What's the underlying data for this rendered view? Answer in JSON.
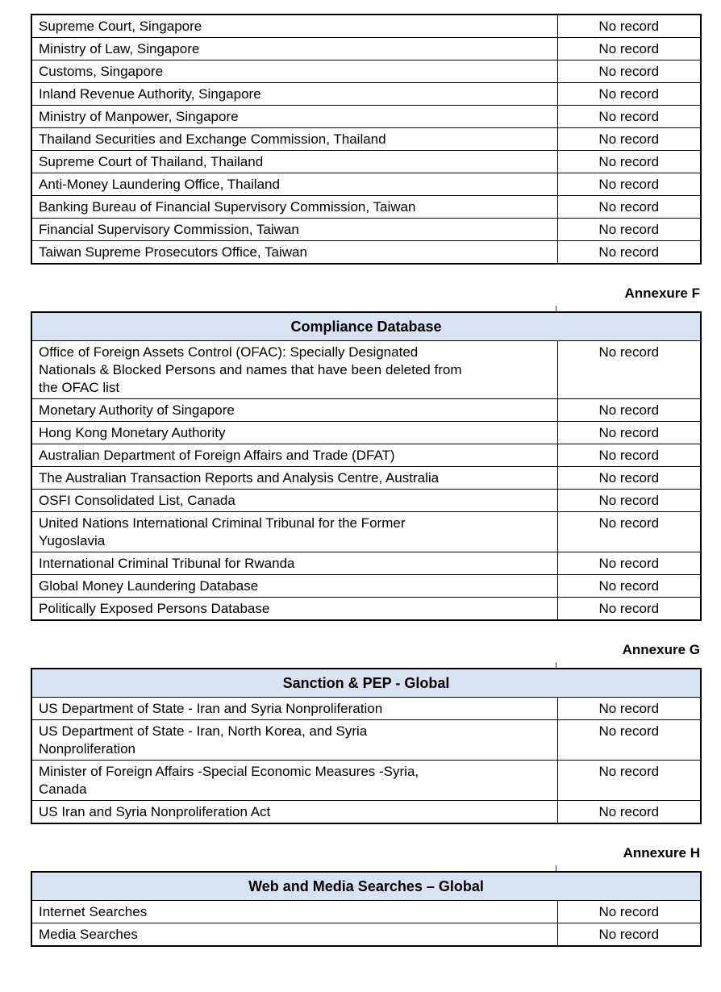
{
  "colors": {
    "background": "#ffffff",
    "header_fill": "#d9e2f3",
    "border": "#000000",
    "text": "#000000"
  },
  "continuation_table": {
    "rows": [
      {
        "source": "Supreme Court, Singapore",
        "result": "No record"
      },
      {
        "source": "Ministry of Law, Singapore",
        "result": "No record"
      },
      {
        "source": "Customs, Singapore",
        "result": "No record"
      },
      {
        "source": "Inland Revenue Authority, Singapore",
        "result": "No record"
      },
      {
        "source": "Ministry of Manpower, Singapore",
        "result": "No record"
      },
      {
        "source": "Thailand Securities and Exchange Commission, Thailand",
        "result": "No record"
      },
      {
        "source": "Supreme Court of Thailand, Thailand",
        "result": "No record"
      },
      {
        "source": "Anti-Money Laundering Office, Thailand",
        "result": "No record"
      },
      {
        "source": "Banking Bureau of Financial Supervisory Commission, Taiwan",
        "result": "No record"
      },
      {
        "source": "Financial Supervisory Commission, Taiwan",
        "result": "No record"
      },
      {
        "source": "Taiwan Supreme Prosecutors Office, Taiwan",
        "result": "No record"
      }
    ]
  },
  "annexure_f": {
    "label": "Annexure F"
  },
  "compliance_table": {
    "title": "Compliance Database",
    "rows": [
      {
        "source": "Office of Foreign Assets Control (OFAC): Specially Designated\nNationals & Blocked Persons and names that have been deleted from\nthe OFAC list",
        "result": "No record"
      },
      {
        "source": "Monetary Authority of Singapore",
        "result": "No record"
      },
      {
        "source": "Hong Kong Monetary Authority",
        "result": "No record"
      },
      {
        "source": "Australian Department of Foreign Affairs and Trade (DFAT)",
        "result": "No record"
      },
      {
        "source": "The Australian Transaction Reports and Analysis Centre, Australia",
        "result": "No record"
      },
      {
        "source": "OSFI Consolidated List, Canada",
        "result": "No record"
      },
      {
        "source": "United Nations International Criminal Tribunal for the Former\nYugoslavia",
        "result": "No record"
      },
      {
        "source": "International Criminal Tribunal for Rwanda",
        "result": "No record"
      },
      {
        "source": "Global Money Laundering Database",
        "result": "No record"
      },
      {
        "source": "Politically Exposed Persons Database",
        "result": "No record"
      }
    ]
  },
  "annexure_g": {
    "label": "Annexure G"
  },
  "sanction_table": {
    "title": "Sanction & PEP - Global",
    "rows": [
      {
        "source": "US Department of State - Iran and Syria Nonproliferation",
        "result": "No record"
      },
      {
        "source": "US Department of State - Iran, North Korea, and Syria\nNonproliferation",
        "result": "No record"
      },
      {
        "source": "Minister of Foreign Affairs -Special Economic Measures -Syria,\nCanada",
        "result": "No record"
      },
      {
        "source": "US Iran and Syria Nonproliferation Act",
        "result": "No record"
      }
    ]
  },
  "annexure_h": {
    "label": "Annexure H"
  },
  "web_media_table": {
    "title": "Web and Media Searches – Global",
    "rows": [
      {
        "source": "Internet Searches",
        "result": "No record"
      },
      {
        "source": "Media Searches",
        "result": "No record"
      }
    ]
  }
}
